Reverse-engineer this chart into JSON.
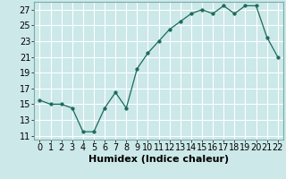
{
  "x": [
    0,
    1,
    2,
    3,
    4,
    5,
    6,
    7,
    8,
    9,
    10,
    11,
    12,
    13,
    14,
    15,
    16,
    17,
    18,
    19,
    20,
    21,
    22
  ],
  "y": [
    15.5,
    15.0,
    15.0,
    14.5,
    11.5,
    11.5,
    14.5,
    16.5,
    14.5,
    19.5,
    21.5,
    23.0,
    24.5,
    25.5,
    26.5,
    27.0,
    26.5,
    27.5,
    26.5,
    27.5,
    27.5,
    23.5,
    21.0
  ],
  "line_color": "#1a6b5a",
  "marker": "o",
  "marker_size": 2.5,
  "bg_color": "#cce8e8",
  "grid_color": "#ffffff",
  "xlabel": "Humidex (Indice chaleur)",
  "xlim": [
    -0.5,
    22.5
  ],
  "ylim": [
    10.5,
    28.0
  ],
  "yticks": [
    11,
    13,
    15,
    17,
    19,
    21,
    23,
    25,
    27
  ],
  "xticks": [
    0,
    1,
    2,
    3,
    4,
    5,
    6,
    7,
    8,
    9,
    10,
    11,
    12,
    13,
    14,
    15,
    16,
    17,
    18,
    19,
    20,
    21,
    22
  ],
  "xlabel_fontsize": 8,
  "tick_fontsize": 7,
  "line_width": 0.9
}
